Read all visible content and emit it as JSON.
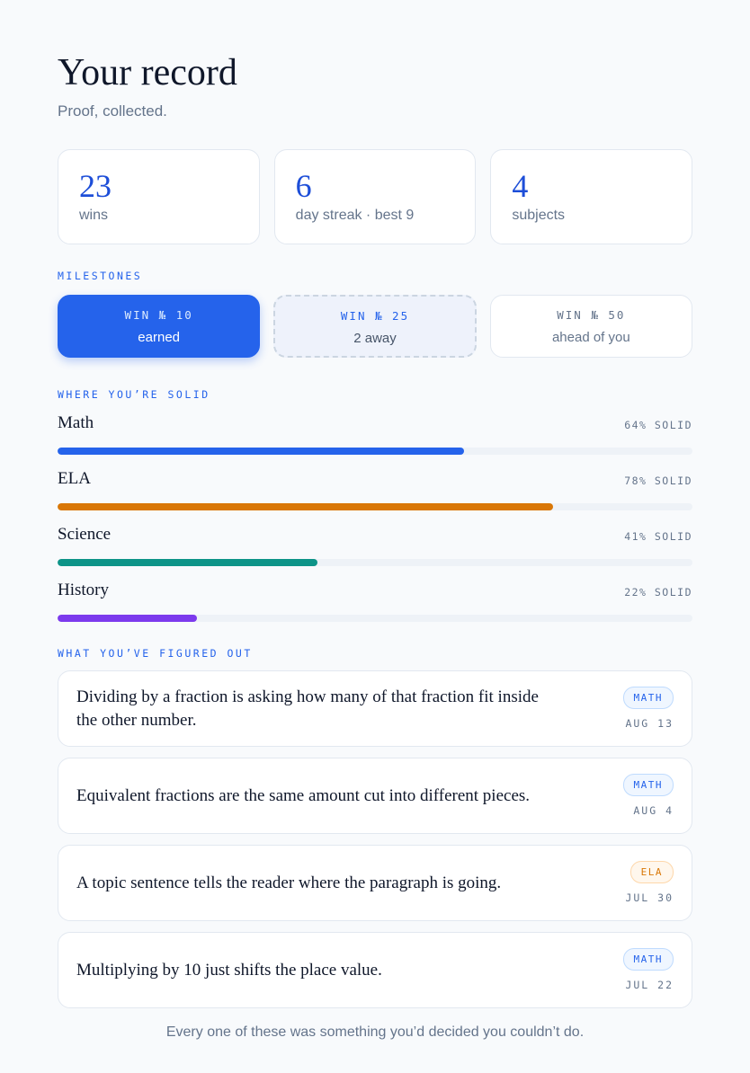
{
  "header": {
    "title": "Your record",
    "subtitle": "Proof, collected."
  },
  "stats": [
    {
      "value": "23",
      "label": "wins"
    },
    {
      "value": "6",
      "label": "day streak · best 9"
    },
    {
      "value": "4",
      "label": "subjects"
    }
  ],
  "milestones": {
    "heading": "MILESTONES",
    "items": [
      {
        "title": "WIN № 10",
        "status": "earned"
      },
      {
        "title": "WIN № 25",
        "status": "2 away"
      },
      {
        "title": "WIN № 50",
        "status": "ahead of you"
      }
    ]
  },
  "subjects": {
    "heading": "WHERE YOU’RE SOLID",
    "items": [
      {
        "name": "Math",
        "percent": 64,
        "percent_label": "64% SOLID",
        "color": "#2563eb"
      },
      {
        "name": "ELA",
        "percent": 78,
        "percent_label": "78% SOLID",
        "color": "#d97706"
      },
      {
        "name": "Science",
        "percent": 41,
        "percent_label": "41% SOLID",
        "color": "#0d9488"
      },
      {
        "name": "History",
        "percent": 22,
        "percent_label": "22% SOLID",
        "color": "#7c3aed"
      }
    ]
  },
  "insights": {
    "heading": "WHAT YOU’VE FIGURED OUT",
    "items": [
      {
        "text": "Dividing by a fraction is asking how many of that fraction fit inside the other number.",
        "tag": "MATH",
        "date": "AUG 13",
        "color": "blue"
      },
      {
        "text": "Equivalent fractions are the same amount cut into different pieces.",
        "tag": "MATH",
        "date": "AUG 4",
        "color": "blue"
      },
      {
        "text": "A topic sentence tells the reader where the paragraph is going.",
        "tag": "ELA",
        "date": "JUL 30",
        "color": "orange"
      },
      {
        "text": "Multiplying by 10 just shifts the place value.",
        "tag": "MATH",
        "date": "JUL 22",
        "color": "blue"
      }
    ]
  },
  "footer": "Every one of these was something you’d decided you couldn’t do."
}
